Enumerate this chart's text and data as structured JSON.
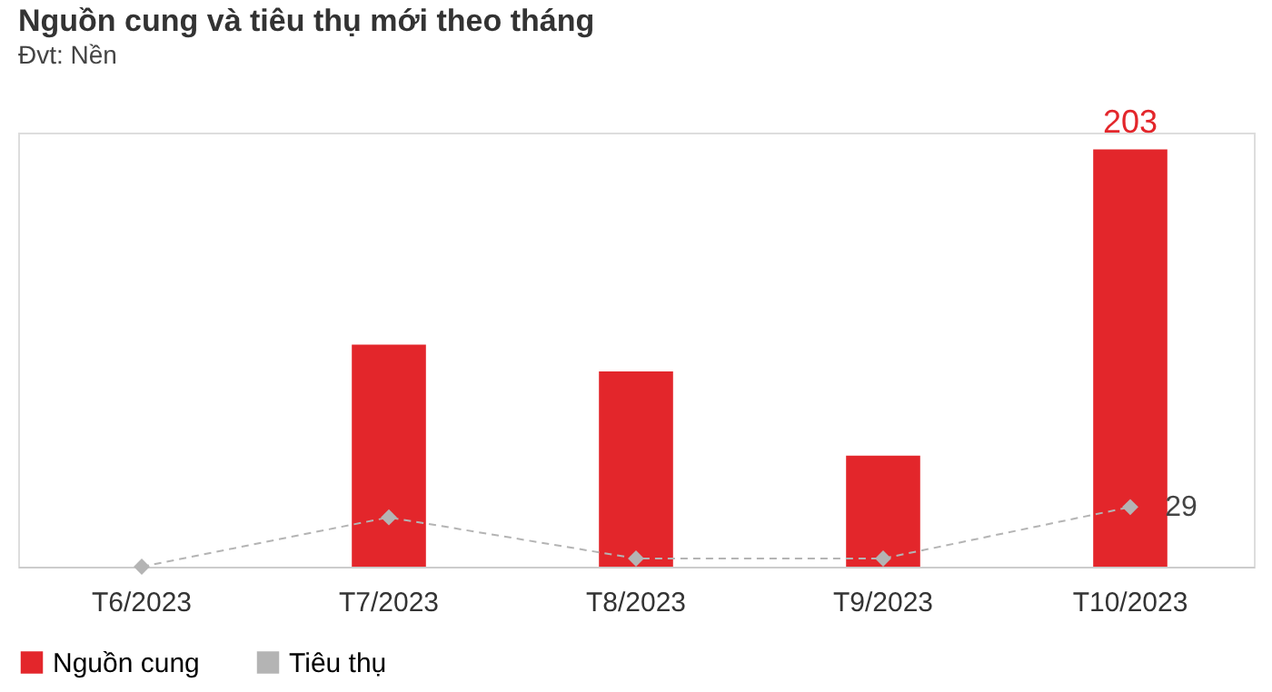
{
  "chart_data": {
    "type": "bar",
    "title": "Nguồn cung và tiêu thụ mới theo tháng",
    "subtitle": "Đvt: Nền",
    "categories": [
      "T6/2023",
      "T7/2023",
      "T8/2023",
      "T9/2023",
      "T10/2023"
    ],
    "series": [
      {
        "name": "Nguồn cung",
        "color": "#e3262b",
        "values": [
          0,
          108,
          95,
          54,
          203
        ],
        "value_labels": [
          null,
          null,
          null,
          null,
          "203"
        ]
      },
      {
        "name": "Tiêu thụ",
        "type": "line",
        "color": "#b4b4b4",
        "values": [
          0,
          24,
          4,
          4,
          29
        ],
        "value_labels": [
          null,
          null,
          null,
          null,
          "29"
        ],
        "marker": "diamond",
        "line_style": "dashed"
      }
    ],
    "legend": "bottom",
    "grid": false
  }
}
